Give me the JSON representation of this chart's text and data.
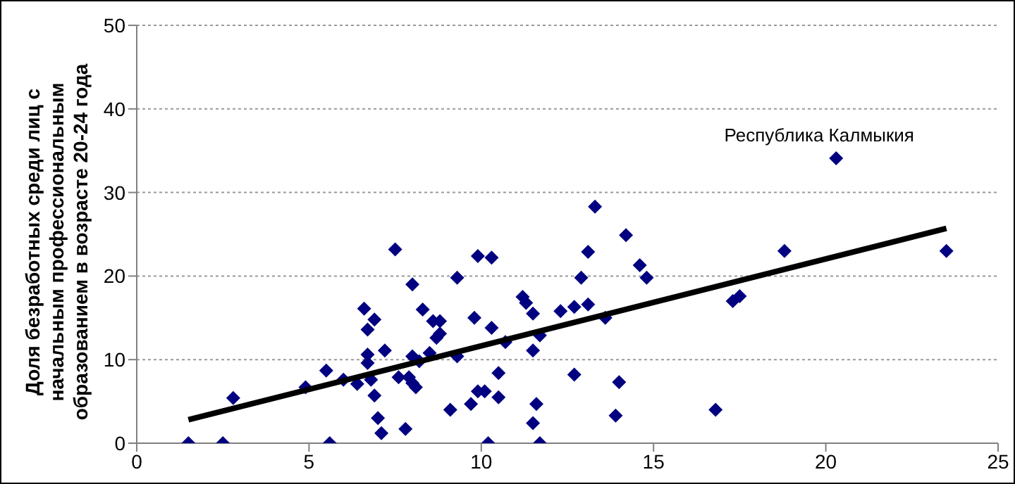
{
  "chart_data": {
    "type": "scatter",
    "ylabel": "Доля безработных среди лиц с начальным профессиональным образованием в возрасте 20-24 года",
    "xlim": [
      0,
      25
    ],
    "xticks": [
      0,
      5,
      10,
      15,
      20,
      25
    ],
    "ylim": [
      0,
      50
    ],
    "yticks": [
      0,
      10,
      20,
      30,
      40,
      50
    ],
    "grid": "y",
    "marker": "diamond",
    "legend": false,
    "annotations": [
      {
        "text": "Республика Калмыкия",
        "x": 20.3,
        "y": 34.1
      }
    ],
    "series": [
      {
        "color": "#000080",
        "x": [
          1.5,
          2.5,
          2.8,
          4.9,
          5.6,
          5.5,
          6.0,
          6.4,
          6.6,
          6.9,
          6.7,
          6.7,
          6.7,
          6.8,
          6.9,
          7.0,
          7.1,
          7.5,
          7.2,
          7.6,
          7.8,
          7.9,
          8.0,
          8.0,
          8.0,
          8.1,
          8.2,
          8.3,
          8.5,
          8.6,
          8.7,
          8.8,
          8.8,
          9.1,
          9.3,
          9.3,
          9.7,
          9.8,
          9.9,
          9.9,
          10.1,
          10.2,
          10.3,
          10.3,
          10.5,
          10.5,
          10.7,
          11.2,
          11.3,
          11.5,
          11.5,
          11.7,
          11.5,
          11.6,
          11.7,
          12.3,
          12.7,
          12.7,
          12.9,
          13.1,
          13.1,
          13.3,
          14.2,
          14.6,
          14.8,
          13.6,
          14.0,
          13.9,
          16.8,
          17.3,
          17.5,
          18.8,
          20.3,
          23.5
        ],
        "values": [
          0,
          0,
          5.4,
          6.7,
          0,
          8.7,
          7.6,
          7.1,
          16.1,
          14.8,
          13.6,
          10.6,
          9.6,
          7.6,
          5.7,
          3.0,
          1.2,
          23.2,
          11.1,
          7.9,
          1.7,
          7.9,
          19.0,
          10.4,
          7.2,
          6.7,
          9.8,
          16.0,
          10.8,
          14.6,
          12.6,
          14.6,
          13.1,
          4.0,
          19.8,
          10.4,
          4.7,
          15.0,
          22.4,
          6.2,
          6.2,
          0,
          22.2,
          13.8,
          5.5,
          8.4,
          12.1,
          17.5,
          16.8,
          15.5,
          11.1,
          12.9,
          2.4,
          4.7,
          0,
          15.8,
          8.2,
          16.3,
          19.8,
          16.6,
          22.9,
          28.3,
          24.9,
          21.3,
          19.8,
          15.0,
          7.3,
          3.3,
          4.0,
          17.0,
          17.6,
          23.0,
          34.1,
          23.0
        ]
      },
      {
        "type": "line",
        "color": "#000000",
        "marker": "none",
        "x": [
          1.5,
          23.5
        ],
        "values": [
          2.8,
          25.7
        ]
      }
    ]
  }
}
